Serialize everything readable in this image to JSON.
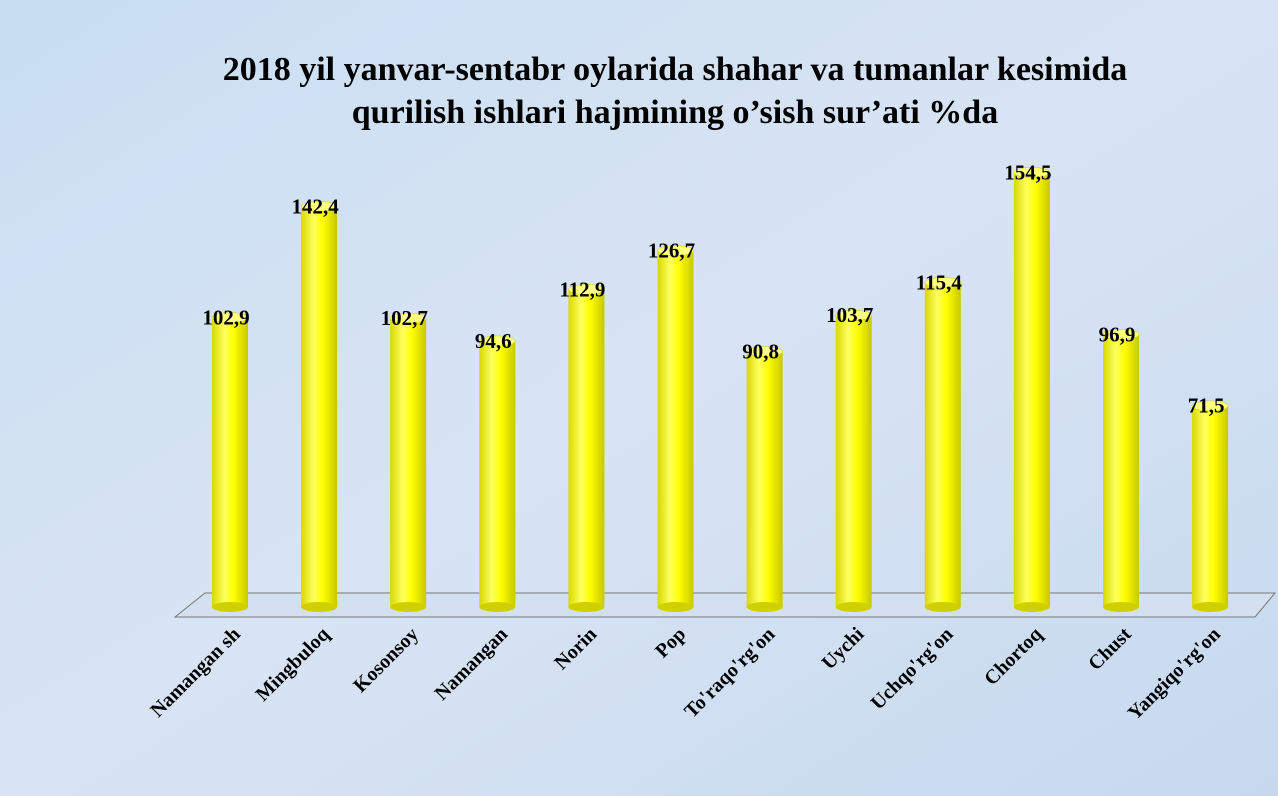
{
  "chart_data": {
    "type": "bar",
    "title": [
      "2018 yil yanvar-sentabr oylarida shahar va tumanlar kesimida",
      "qurilish ishlari hajmining o’sish sur’ati %da"
    ],
    "categories": [
      "Namangan sh",
      "Mingbuloq",
      "Kosonsoy",
      "Namangan",
      "Norin",
      "Pop",
      "To'raqo'rg'on",
      "Uychi",
      "Uchqo'rg'on",
      "Chortoq",
      "Chust",
      "Yangiqo'rg'on"
    ],
    "values": [
      102.9,
      142.4,
      102.7,
      94.6,
      112.9,
      126.7,
      90.8,
      103.7,
      115.4,
      154.5,
      96.9,
      71.5
    ],
    "value_labels": [
      "102,9",
      "142,4",
      "102,7",
      "94,6",
      "112,9",
      "126,7",
      "90,8",
      "103,7",
      "115,4",
      "154,5",
      "96,9",
      "71,5"
    ],
    "color": "#ffff00",
    "ylim": [
      0,
      160
    ]
  }
}
